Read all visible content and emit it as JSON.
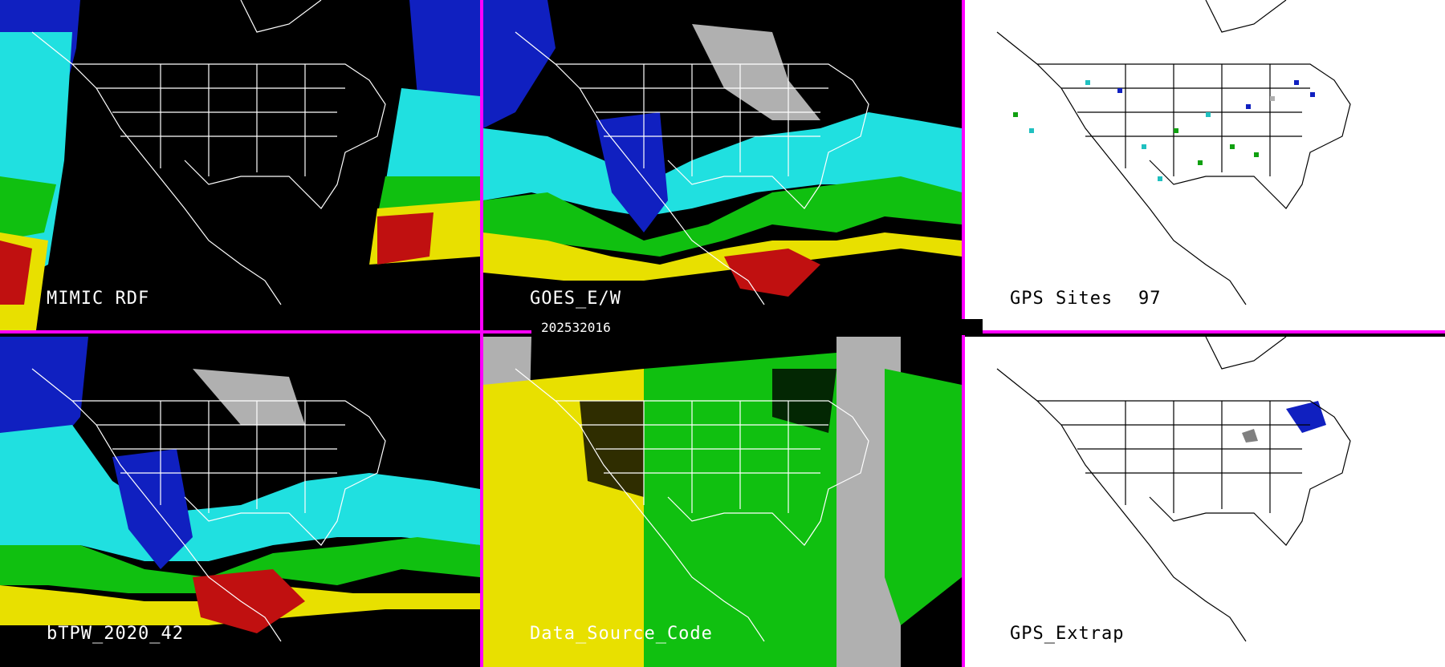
{
  "panels": {
    "mimic": {
      "label": "MIMIC RDF"
    },
    "goes": {
      "label": "GOES_E/W"
    },
    "gps_sites": {
      "label": "GPS Sites",
      "count": "97"
    },
    "blpw": {
      "label": "bTPW_2020_42"
    },
    "data_source": {
      "label": "Data_Source_Code"
    },
    "gps_extrap": {
      "label": "GPS_Extrap"
    }
  },
  "timestamp": "202532016",
  "colors": {
    "divider": "#ff00ff",
    "deep_blue": "#1020c0",
    "cyan": "#20e0e0",
    "green": "#10c010",
    "yellow": "#e8e000",
    "red": "#c01010",
    "gray": "#b0b0b0"
  }
}
